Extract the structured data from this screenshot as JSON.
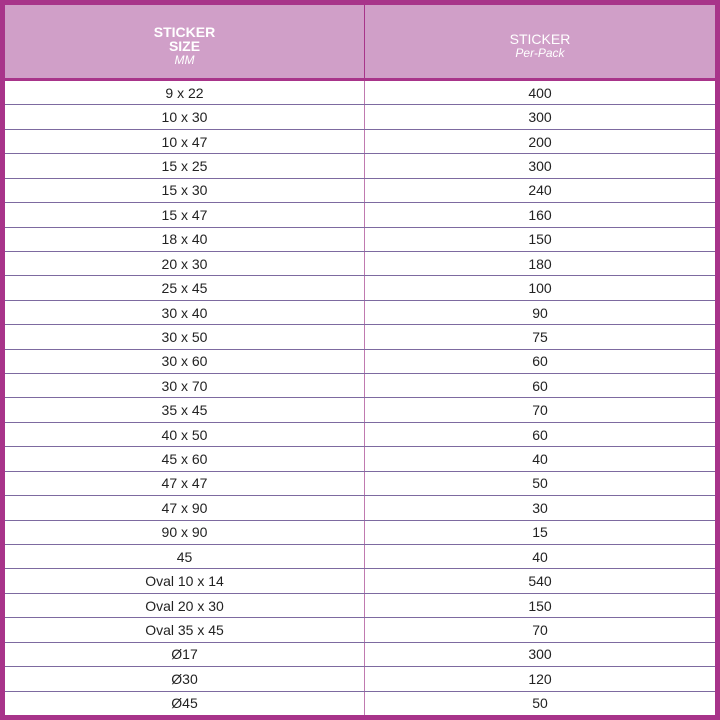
{
  "header": {
    "size_line1": "STICKER",
    "size_line2": "SIZE",
    "size_unit": "MM",
    "count_line1": "STICKER",
    "count_line2": "Per-Pack"
  },
  "colors": {
    "frame": "#a8348a",
    "header_bg": "#d09fc8",
    "row_divider": "#7d6aa0"
  },
  "rows": [
    {
      "size": "9 x 22",
      "count": "400"
    },
    {
      "size": "10 x 30",
      "count": "300"
    },
    {
      "size": "10 x 47",
      "count": "200"
    },
    {
      "size": "15 x 25",
      "count": "300"
    },
    {
      "size": "15 x 30",
      "count": "240"
    },
    {
      "size": "15 x 47",
      "count": "160"
    },
    {
      "size": "18 x 40",
      "count": "150"
    },
    {
      "size": "20 x 30",
      "count": "180"
    },
    {
      "size": "25 x 45",
      "count": "100"
    },
    {
      "size": "30 x 40",
      "count": "90"
    },
    {
      "size": "30 x 50",
      "count": "75"
    },
    {
      "size": "30 x 60",
      "count": "60"
    },
    {
      "size": "30 x 70",
      "count": "60"
    },
    {
      "size": "35 x 45",
      "count": "70"
    },
    {
      "size": "40 x 50",
      "count": "60"
    },
    {
      "size": "45 x 60",
      "count": "40"
    },
    {
      "size": "47 x 47",
      "count": "50"
    },
    {
      "size": "47 x 90",
      "count": "30"
    },
    {
      "size": "90 x 90",
      "count": "15"
    },
    {
      "size": "45",
      "count": "40"
    },
    {
      "size": "Oval 10 x 14",
      "count": "540"
    },
    {
      "size": "Oval 20 x 30",
      "count": "150"
    },
    {
      "size": "Oval 35 x 45",
      "count": "70"
    },
    {
      "size": "Ø17",
      "count": "300"
    },
    {
      "size": "Ø30",
      "count": "120"
    },
    {
      "size": "Ø45",
      "count": "50"
    }
  ]
}
